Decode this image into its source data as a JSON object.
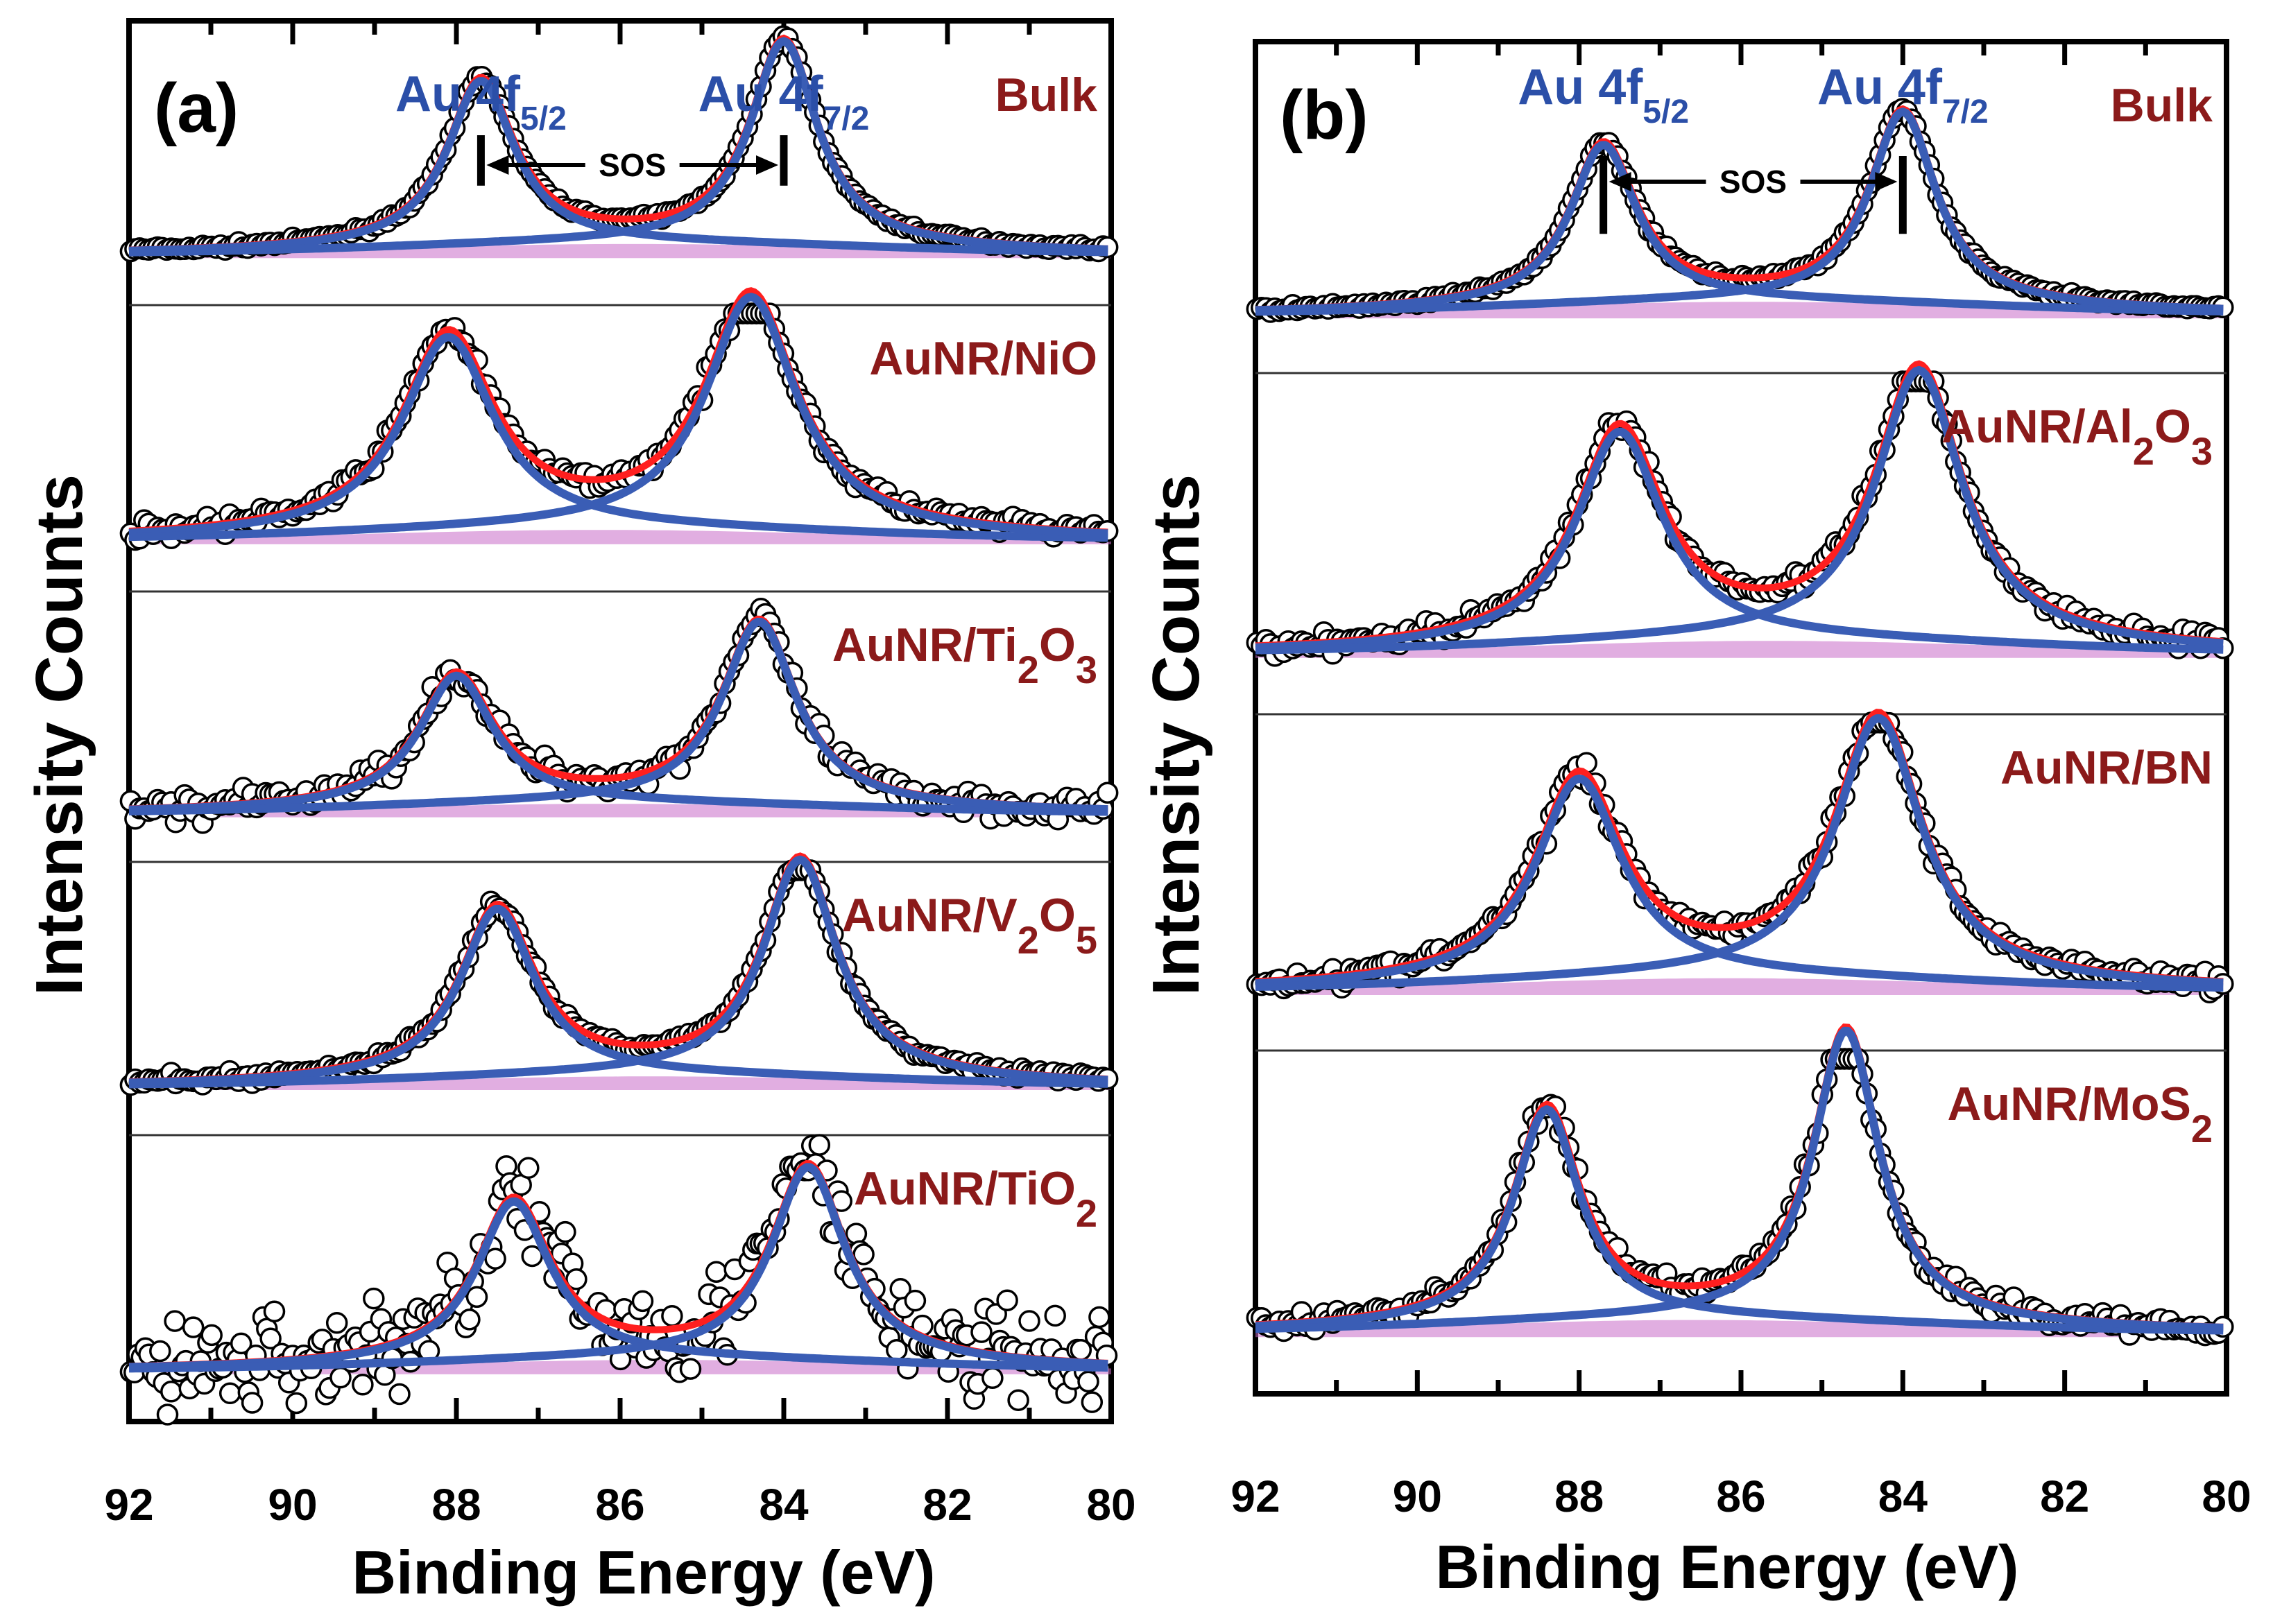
{
  "colors": {
    "data_marker": "#000000",
    "envelope_fit": "#ff1f1f",
    "component_fit": "#3a5db5",
    "background_fill": "#c86bc8",
    "peak_label": "#2b4fa8",
    "sample_label": "#8b1a1a",
    "axis": "#000000"
  },
  "chart_data": [
    {
      "panel": "(a)",
      "type": "scatter",
      "description_kind": "stacked XPS spectra",
      "xlabel": "Binding Energy (eV)",
      "ylabel": "Intensity Counts",
      "xlim": [
        92,
        80
      ],
      "xticks": [
        "92",
        "90",
        "88",
        "86",
        "84",
        "82",
        "80"
      ],
      "peak_labels": [
        {
          "main": "Au 4f",
          "sub": "5/2",
          "position_ev": 87.7
        },
        {
          "main": "Au 4f",
          "sub": "7/2",
          "position_ev": 84.0
        }
      ],
      "sos_label": "SOS",
      "series": [
        {
          "name": "Bulk",
          "name_main": "Bulk",
          "name_sub": "",
          "name_tail": "",
          "peak1_ev": 87.7,
          "peak2_ev": 84.0,
          "peak1_height": 0.58,
          "peak2_height": 0.72,
          "fwhm_ev": 1.0,
          "noise": 0.01
        },
        {
          "name": "AuNR/NiO",
          "name_main": "AuNR/NiO",
          "name_sub": "",
          "name_tail": "",
          "peak1_ev": 88.1,
          "peak2_ev": 84.4,
          "peak1_height": 0.68,
          "peak2_height": 0.82,
          "fwhm_ev": 1.35,
          "noise": 0.03
        },
        {
          "name": "AuNR/Ti2O3",
          "name_main": "AuNR/Ti",
          "name_sub": "2",
          "name_tail": "O",
          "name_sub2": "3",
          "peak1_ev": 88.0,
          "peak2_ev": 84.3,
          "peak1_height": 0.48,
          "peak2_height": 0.68,
          "fwhm_ev": 1.1,
          "noise": 0.05
        },
        {
          "name": "AuNR/V2O5",
          "name_main": "AuNR/V",
          "name_sub": "2",
          "name_tail": "O",
          "name_sub2": "5",
          "peak1_ev": 87.5,
          "peak2_ev": 83.8,
          "peak1_height": 0.62,
          "peak2_height": 0.8,
          "fwhm_ev": 1.1,
          "noise": 0.02
        },
        {
          "name": "AuNR/TiO2",
          "name_main": "AuNR/TiO",
          "name_sub": "2",
          "name_tail": "",
          "peak1_ev": 87.3,
          "peak2_ev": 83.7,
          "peak1_height": 0.56,
          "peak2_height": 0.68,
          "fwhm_ev": 1.1,
          "noise": 0.14
        }
      ]
    },
    {
      "panel": "(b)",
      "type": "scatter",
      "description_kind": "stacked XPS spectra",
      "xlabel": "Binding Energy (eV)",
      "ylabel": "Intensity Counts",
      "xlim": [
        92,
        80
      ],
      "xticks": [
        "92",
        "90",
        "88",
        "86",
        "84",
        "82",
        "80"
      ],
      "peak_labels": [
        {
          "main": "Au 4f",
          "sub": "5/2",
          "position_ev": 87.7
        },
        {
          "main": "Au 4f",
          "sub": "7/2",
          "position_ev": 84.0
        }
      ],
      "sos_label": "SOS",
      "series": [
        {
          "name": "Bulk",
          "name_main": "Bulk",
          "name_sub": "",
          "name_tail": "",
          "peak1_ev": 87.7,
          "peak2_ev": 84.0,
          "peak1_height": 0.48,
          "peak2_height": 0.58,
          "fwhm_ev": 1.0,
          "noise": 0.01
        },
        {
          "name": "AuNR/Al2O3",
          "name_main": "AuNR/Al",
          "name_sub": "2",
          "name_tail": "O",
          "name_sub2": "3",
          "peak1_ev": 87.5,
          "peak2_ev": 83.8,
          "peak1_height": 0.62,
          "peak2_height": 0.8,
          "fwhm_ev": 1.3,
          "noise": 0.03
        },
        {
          "name": "AuNR/BN",
          "name_main": "AuNR/BN",
          "name_sub": "",
          "name_tail": "",
          "peak1_ev": 88.0,
          "peak2_ev": 84.3,
          "peak1_height": 0.6,
          "peak2_height": 0.78,
          "fwhm_ev": 1.3,
          "noise": 0.03
        },
        {
          "name": "AuNR/MoS2",
          "name_main": "AuNR/MoS",
          "name_sub": "2",
          "name_tail": "",
          "peak1_ev": 88.4,
          "peak2_ev": 84.7,
          "peak1_height": 0.62,
          "peak2_height": 0.85,
          "fwhm_ev": 1.0,
          "noise": 0.03
        }
      ]
    }
  ]
}
